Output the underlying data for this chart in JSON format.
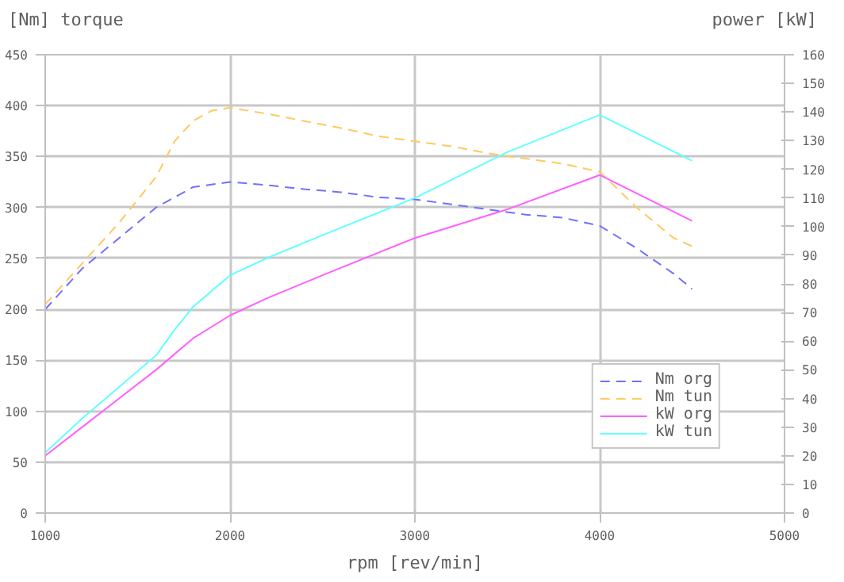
{
  "chart_data": {
    "type": "line",
    "xlabel": "rpm [rev/min]",
    "ylabel": "[Nm] torque",
    "y2label": "power [kW]",
    "xlim": [
      1000,
      5000
    ],
    "xticks": [
      1000,
      2000,
      3000,
      4000,
      5000
    ],
    "ylim": [
      0,
      450
    ],
    "yticks": [
      0,
      50,
      100,
      150,
      200,
      250,
      300,
      350,
      400,
      450
    ],
    "y2lim": [
      0,
      160
    ],
    "y2ticks": [
      0,
      10,
      20,
      30,
      40,
      50,
      60,
      70,
      80,
      90,
      100,
      110,
      120,
      130,
      140,
      150,
      160
    ],
    "grid": true,
    "legend": "bottom right",
    "series": [
      {
        "name": "Nm org",
        "color": "#7070ff",
        "line_style": "dashed",
        "x": [
          1000,
          1200,
          1400,
          1600,
          1800,
          2000,
          2200,
          2400,
          2600,
          2800,
          3000,
          3200,
          3400,
          3600,
          3800,
          4000,
          4200,
          4400,
          4500
        ],
        "values": [
          200,
          240,
          270,
          300,
          320,
          325,
          322,
          318,
          315,
          310,
          308,
          303,
          298,
          293,
          290,
          282,
          260,
          235,
          220
        ]
      },
      {
        "name": "Nm tun",
        "color": "#ffc860",
        "line_style": "dashed",
        "x": [
          1000,
          1200,
          1400,
          1600,
          1700,
          1800,
          1900,
          2000,
          2200,
          2400,
          2600,
          2800,
          3000,
          3200,
          3400,
          3600,
          3800,
          4000,
          4200,
          4400,
          4500
        ],
        "values": [
          205,
          245,
          285,
          330,
          365,
          385,
          395,
          398,
          392,
          385,
          378,
          370,
          365,
          360,
          353,
          348,
          343,
          335,
          300,
          270,
          262
        ]
      },
      {
        "name": "kW org",
        "color": "#ff60ff",
        "line_style": "solid",
        "axis": "y2",
        "x": [
          1000,
          1200,
          1400,
          1600,
          1800,
          2000,
          2200,
          2500,
          3000,
          3500,
          4000,
          4250,
          4500
        ],
        "values": [
          20,
          30,
          40,
          50,
          61,
          69,
          75,
          83,
          96,
          106,
          118,
          110,
          102
        ]
      },
      {
        "name": "kW tun",
        "color": "#60ffff",
        "line_style": "solid",
        "axis": "y2",
        "x": [
          1000,
          1200,
          1400,
          1600,
          1700,
          1800,
          2000,
          2200,
          2500,
          3000,
          3500,
          4000,
          4500
        ],
        "values": [
          21,
          33,
          44,
          55,
          64,
          72,
          83,
          89,
          97,
          110,
          126,
          139,
          123
        ]
      }
    ]
  }
}
